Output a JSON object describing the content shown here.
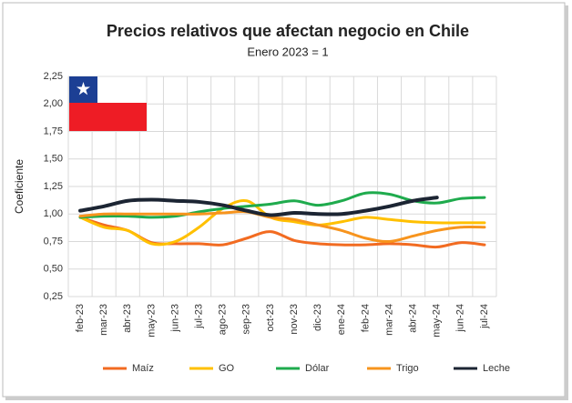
{
  "chart_data": {
    "type": "line",
    "title": "Precios relativos que afectan negocio en Chile",
    "subtitle": "Enero 2023 = 1",
    "y_label": "Coeficiente",
    "categories": [
      "feb-23",
      "mar-23",
      "abr-23",
      "may-23",
      "jun-23",
      "jul-23",
      "ago-23",
      "sep-23",
      "oct-23",
      "nov-23",
      "dic-23",
      "ene-24",
      "feb-24",
      "mar-24",
      "abr-24",
      "may-24",
      "jun-24",
      "jul-24"
    ],
    "series": [
      {
        "name": "Maíz",
        "color": "#f26b21",
        "values": [
          0.97,
          0.9,
          0.85,
          0.74,
          0.73,
          0.73,
          0.72,
          0.78,
          0.84,
          0.76,
          0.73,
          0.72,
          0.72,
          0.73,
          0.72,
          0.7,
          0.74,
          0.72
        ]
      },
      {
        "name": "GO",
        "color": "#ffc000",
        "values": [
          0.97,
          0.88,
          0.85,
          0.73,
          0.75,
          0.88,
          1.05,
          1.12,
          0.97,
          0.93,
          0.9,
          0.93,
          0.97,
          0.95,
          0.93,
          0.92,
          0.92,
          0.92
        ]
      },
      {
        "name": "Dólar",
        "color": "#1fab4d",
        "values": [
          0.97,
          0.98,
          0.98,
          0.97,
          0.98,
          1.02,
          1.05,
          1.07,
          1.09,
          1.12,
          1.08,
          1.12,
          1.19,
          1.18,
          1.12,
          1.1,
          1.14,
          1.15
        ]
      },
      {
        "name": "Trigo",
        "color": "#f7941d",
        "values": [
          0.98,
          1.0,
          1.0,
          1.0,
          1.0,
          1.0,
          1.01,
          1.02,
          0.97,
          0.95,
          0.9,
          0.85,
          0.78,
          0.75,
          0.8,
          0.85,
          0.88,
          0.88
        ]
      },
      {
        "name": "Leche",
        "color": "#1c2533",
        "values": [
          1.03,
          1.07,
          1.12,
          1.13,
          1.12,
          1.11,
          1.08,
          1.03,
          0.99,
          1.01,
          1.0,
          1.0,
          1.03,
          1.07,
          1.12,
          1.15,
          null,
          null
        ]
      }
    ],
    "ylim": [
      0.25,
      2.25
    ],
    "yticks": [
      {
        "value": 0.25,
        "label": "0,25"
      },
      {
        "value": 0.5,
        "label": "0,50"
      },
      {
        "value": 0.75,
        "label": "0,75"
      },
      {
        "value": 1,
        "label": "1,00"
      },
      {
        "value": 1.25,
        "label": "1,25"
      },
      {
        "value": 1.5,
        "label": "1,50"
      },
      {
        "value": 1.75,
        "label": "1,75"
      },
      {
        "value": 2,
        "label": "2,00"
      },
      {
        "value": 2.25,
        "label": "2,25"
      }
    ],
    "grid": true,
    "legend": "bottom"
  }
}
